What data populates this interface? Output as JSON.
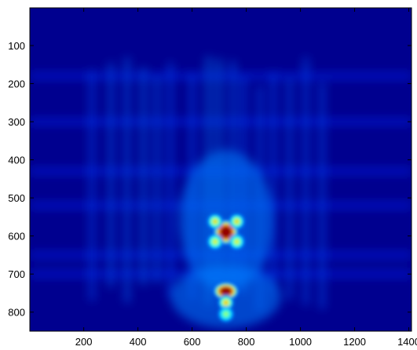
{
  "chart_data": {
    "type": "heatmap",
    "title": "",
    "xlabel": "",
    "ylabel": "",
    "xlim": [
      1,
      1410
    ],
    "ylim": [
      1,
      850
    ],
    "y_axis_direction": "top-to-bottom",
    "xticks": [
      200,
      400,
      600,
      800,
      1000,
      1200,
      1400
    ],
    "yticks": [
      100,
      200,
      300,
      400,
      500,
      600,
      700,
      800
    ],
    "xtick_labels": [
      "200",
      "400",
      "600",
      "800",
      "1000",
      "1200",
      "1400"
    ],
    "ytick_labels": [
      "100",
      "200",
      "300",
      "400",
      "500",
      "600",
      "700",
      "800"
    ],
    "colormap": "jet",
    "colors": {
      "background": "#00008f",
      "low": "#000080",
      "high": "#800000"
    },
    "grid": false,
    "legend": "none",
    "features": [
      {
        "kind": "peak",
        "x": 725,
        "y": 590,
        "intensity": 1.0
      },
      {
        "kind": "peak",
        "x": 725,
        "y": 745,
        "intensity": 0.95
      },
      {
        "kind": "side-lobe",
        "x": 685,
        "y": 562,
        "intensity": 0.55
      },
      {
        "kind": "side-lobe",
        "x": 765,
        "y": 562,
        "intensity": 0.55
      },
      {
        "kind": "side-lobe",
        "x": 685,
        "y": 615,
        "intensity": 0.5
      },
      {
        "kind": "side-lobe",
        "x": 765,
        "y": 615,
        "intensity": 0.5
      },
      {
        "kind": "side-lobe",
        "x": 725,
        "y": 775,
        "intensity": 0.6
      },
      {
        "kind": "side-lobe",
        "x": 725,
        "y": 805,
        "intensity": 0.4
      }
    ]
  }
}
